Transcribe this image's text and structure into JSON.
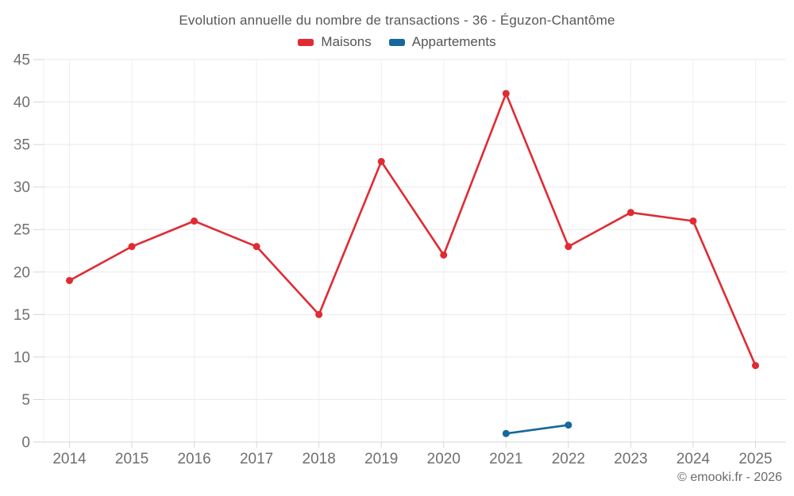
{
  "header": {
    "title": "Evolution annuelle du nombre de transactions - 36 - Éguzon-Chantôme"
  },
  "footer": {
    "credit": "© emooki.fr - 2026"
  },
  "chart_data": {
    "type": "line",
    "title": "Evolution annuelle du nombre de transactions - 36 - Éguzon-Chantôme",
    "categories": [
      "2014",
      "2015",
      "2016",
      "2017",
      "2018",
      "2019",
      "2020",
      "2021",
      "2022",
      "2023",
      "2024",
      "2025"
    ],
    "series": [
      {
        "name": "Maisons",
        "color": "#e02b33",
        "values": [
          19,
          23,
          26,
          23,
          15,
          33,
          22,
          41,
          23,
          27,
          26,
          9
        ]
      },
      {
        "name": "Appartements",
        "color": "#16689c",
        "values": [
          null,
          null,
          null,
          null,
          null,
          null,
          null,
          1,
          2,
          null,
          null,
          null
        ]
      }
    ],
    "xlabel": "",
    "ylabel": "",
    "ylim": [
      0,
      45
    ],
    "ytick_step": 5,
    "grid": true,
    "legend_position": "top",
    "axis_label_color": "#6f6f6f",
    "grid_color_h": "#e9e9e9",
    "grid_color_v": "#efefef",
    "axis_line_color": "#d6d6d6"
  }
}
